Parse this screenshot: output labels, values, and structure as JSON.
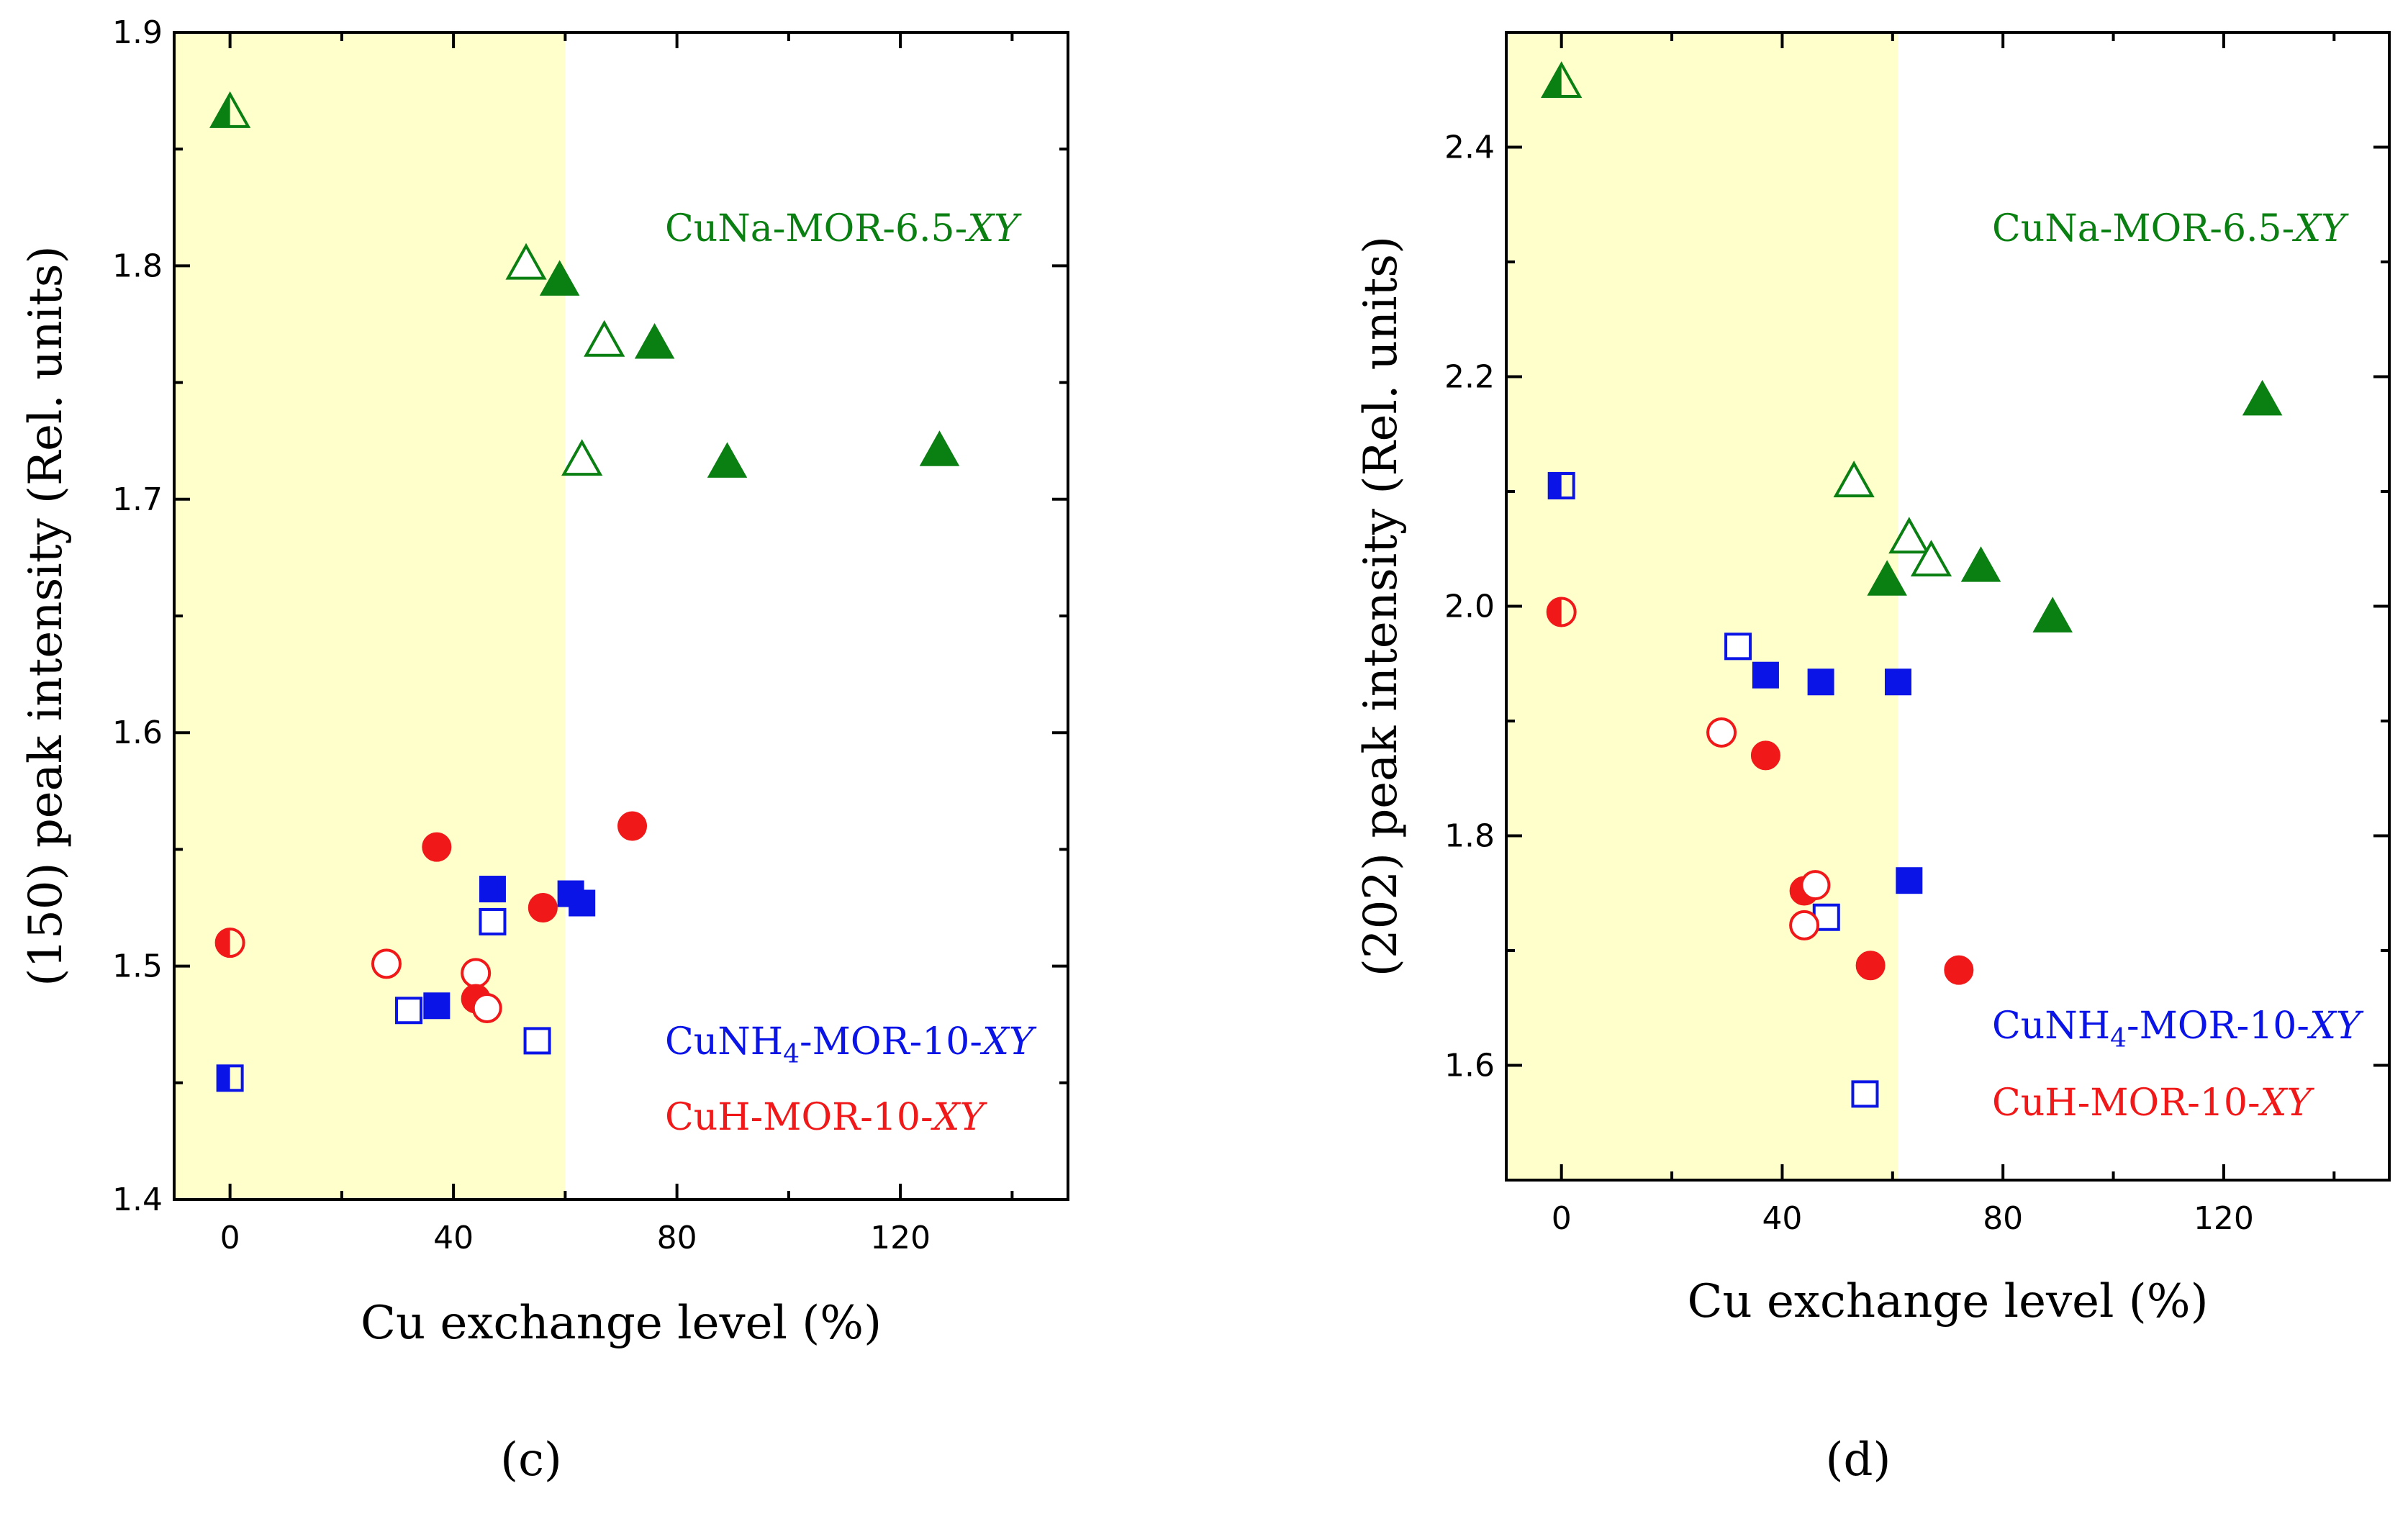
{
  "colors": {
    "shade": "#ffffcc",
    "green": "#0a7f12",
    "blue": "#0a14e6",
    "red": "#f01818"
  },
  "chart_data": [
    {
      "type": "scatter",
      "panel_label": "(c)",
      "xlabel": "Cu exchange level (%)",
      "ylabel": "(150) peak intensity (Rel. units)",
      "xlim": [
        -10,
        150
      ],
      "ylim": [
        1.4,
        1.9
      ],
      "xticks": [
        0,
        40,
        80,
        120
      ],
      "xtick_labels": [
        "0",
        "40",
        "80",
        "120"
      ],
      "yticks": [
        1.4,
        1.5,
        1.6,
        1.7,
        1.8,
        1.9
      ],
      "ytick_labels": [
        "1.4",
        "1.5",
        "1.6",
        "1.7",
        "1.8",
        "1.9"
      ],
      "shaded_region": [
        -10,
        60
      ],
      "legend": [
        {
          "series": "CuNa",
          "prefix": "CuNa-MOR-6.5-",
          "suffix": "XY",
          "sub": ""
        },
        {
          "series": "CuNH4",
          "prefix": "CuNH",
          "sub": "4",
          "post": "-MOR-10-",
          "suffix": "XY"
        },
        {
          "series": "CuH",
          "prefix": "CuH-MOR-10-",
          "suffix": "XY",
          "sub": ""
        }
      ],
      "series": [
        {
          "name": "CuNa-MOR-6.5-XY",
          "marker": "triangle",
          "color": "green",
          "points": [
            {
              "x": 0,
              "y": 1.865,
              "fill": "half"
            },
            {
              "x": 53,
              "y": 1.8,
              "fill": "open"
            },
            {
              "x": 59,
              "y": 1.793,
              "fill": "filled"
            },
            {
              "x": 67,
              "y": 1.767,
              "fill": "open"
            },
            {
              "x": 76,
              "y": 1.766,
              "fill": "filled"
            },
            {
              "x": 63,
              "y": 1.716,
              "fill": "open"
            },
            {
              "x": 89,
              "y": 1.715,
              "fill": "filled"
            },
            {
              "x": 127,
              "y": 1.72,
              "fill": "filled"
            }
          ]
        },
        {
          "name": "CuNH4-MOR-10-XY",
          "marker": "square",
          "color": "blue",
          "points": [
            {
              "x": 0,
              "y": 1.452,
              "fill": "half"
            },
            {
              "x": 32,
              "y": 1.481,
              "fill": "open"
            },
            {
              "x": 37,
              "y": 1.483,
              "fill": "filled"
            },
            {
              "x": 47,
              "y": 1.533,
              "fill": "filled"
            },
            {
              "x": 47,
              "y": 1.519,
              "fill": "open"
            },
            {
              "x": 55,
              "y": 1.468,
              "fill": "open"
            },
            {
              "x": 61,
              "y": 1.531,
              "fill": "filled"
            },
            {
              "x": 63,
              "y": 1.527,
              "fill": "filled"
            }
          ]
        },
        {
          "name": "CuH-MOR-10-XY",
          "marker": "circle",
          "color": "red",
          "points": [
            {
              "x": 0,
              "y": 1.51,
              "fill": "half"
            },
            {
              "x": 28,
              "y": 1.501,
              "fill": "open"
            },
            {
              "x": 37,
              "y": 1.551,
              "fill": "filled"
            },
            {
              "x": 44,
              "y": 1.497,
              "fill": "open"
            },
            {
              "x": 44,
              "y": 1.486,
              "fill": "filled"
            },
            {
              "x": 46,
              "y": 1.482,
              "fill": "open"
            },
            {
              "x": 56,
              "y": 1.525,
              "fill": "filled"
            },
            {
              "x": 72,
              "y": 1.56,
              "fill": "filled"
            }
          ]
        }
      ]
    },
    {
      "type": "scatter",
      "panel_label": "(d)",
      "xlabel": "Cu exchange level (%)",
      "ylabel": "(202) peak intensity (Rel. units)",
      "xlim": [
        -10,
        150
      ],
      "ylim": [
        1.5,
        2.5
      ],
      "xticks": [
        0,
        40,
        80,
        120
      ],
      "xtick_labels": [
        "0",
        "40",
        "80",
        "120"
      ],
      "yticks": [
        1.6,
        1.8,
        2.0,
        2.2,
        2.4
      ],
      "ytick_labels": [
        "1.6",
        "1.8",
        "2.0",
        "2.2",
        "2.4"
      ],
      "shaded_region": [
        -10,
        61
      ],
      "legend": [
        {
          "series": "CuNa",
          "prefix": "CuNa-MOR-6.5-",
          "suffix": "XY",
          "sub": ""
        },
        {
          "series": "CuNH4",
          "prefix": "CuNH",
          "sub": "4",
          "post": "-MOR-10-",
          "suffix": "XY"
        },
        {
          "series": "CuH",
          "prefix": "CuH-MOR-10-",
          "suffix": "XY",
          "sub": ""
        }
      ],
      "series": [
        {
          "name": "CuNa-MOR-6.5-XY",
          "marker": "triangle",
          "color": "green",
          "points": [
            {
              "x": 0,
              "y": 2.455,
              "fill": "half"
            },
            {
              "x": 53,
              "y": 2.107,
              "fill": "open"
            },
            {
              "x": 63,
              "y": 2.058,
              "fill": "open"
            },
            {
              "x": 67,
              "y": 2.038,
              "fill": "open"
            },
            {
              "x": 59,
              "y": 2.021,
              "fill": "filled"
            },
            {
              "x": 76,
              "y": 2.033,
              "fill": "filled"
            },
            {
              "x": 89,
              "y": 1.989,
              "fill": "filled"
            },
            {
              "x": 127,
              "y": 2.178,
              "fill": "filled"
            }
          ]
        },
        {
          "name": "CuNH4-MOR-10-XY",
          "marker": "square",
          "color": "blue",
          "points": [
            {
              "x": 0,
              "y": 2.105,
              "fill": "half"
            },
            {
              "x": 32,
              "y": 1.965,
              "fill": "open"
            },
            {
              "x": 37,
              "y": 1.94,
              "fill": "filled"
            },
            {
              "x": 47,
              "y": 1.934,
              "fill": "filled"
            },
            {
              "x": 61,
              "y": 1.934,
              "fill": "filled"
            },
            {
              "x": 63,
              "y": 1.761,
              "fill": "filled"
            },
            {
              "x": 48,
              "y": 1.729,
              "fill": "open"
            },
            {
              "x": 55,
              "y": 1.575,
              "fill": "open"
            }
          ]
        },
        {
          "name": "CuH-MOR-10-XY",
          "marker": "circle",
          "color": "red",
          "points": [
            {
              "x": 0,
              "y": 1.995,
              "fill": "half"
            },
            {
              "x": 29,
              "y": 1.89,
              "fill": "open"
            },
            {
              "x": 37,
              "y": 1.87,
              "fill": "filled"
            },
            {
              "x": 44,
              "y": 1.752,
              "fill": "filled"
            },
            {
              "x": 46,
              "y": 1.757,
              "fill": "open"
            },
            {
              "x": 44,
              "y": 1.722,
              "fill": "open"
            },
            {
              "x": 56,
              "y": 1.687,
              "fill": "filled"
            },
            {
              "x": 72,
              "y": 1.683,
              "fill": "filled"
            }
          ]
        }
      ]
    }
  ]
}
